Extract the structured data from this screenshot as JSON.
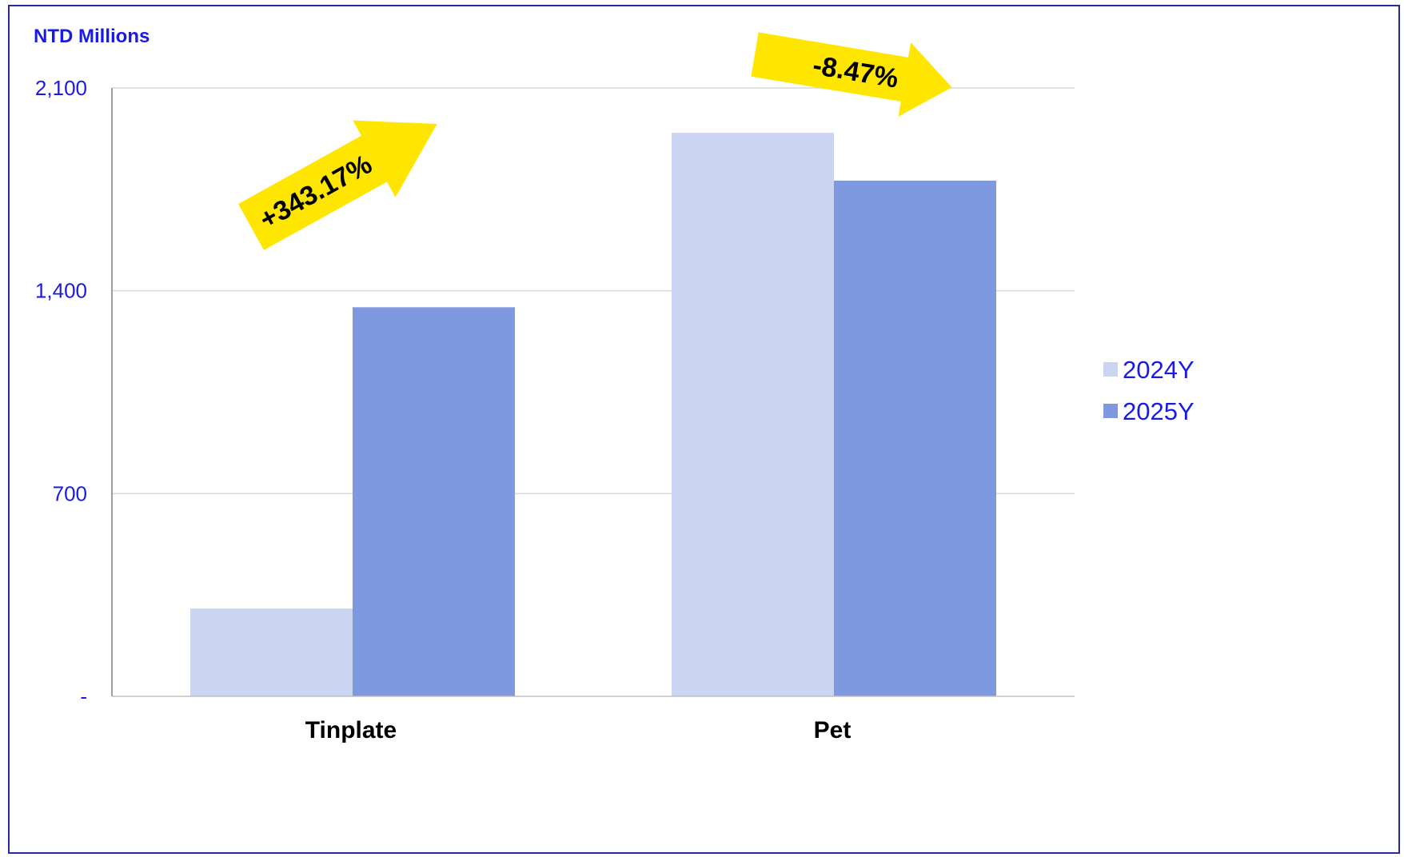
{
  "chart_data": {
    "type": "bar",
    "ylabel": "NTD Millions",
    "categories": [
      "Tinplate",
      "Pet"
    ],
    "series": [
      {
        "name": "2024Y",
        "values": [
          303,
          1945
        ],
        "color": "#cbd5f2"
      },
      {
        "name": "2025Y",
        "values": [
          1343,
          1780
        ],
        "color": "#7f99e0"
      }
    ],
    "ylim": [
      0,
      2100
    ],
    "yticks": [
      {
        "value": 0,
        "label": "-"
      },
      {
        "value": 700,
        "label": "700"
      },
      {
        "value": 1400,
        "label": "1,400"
      },
      {
        "value": 2100,
        "label": "2,100"
      }
    ],
    "grid": true,
    "legend_position": "right",
    "annotations": [
      {
        "text": "+343.17%",
        "category": "Tinplate",
        "direction": "up"
      },
      {
        "text": "-8.47%",
        "category": "Pet",
        "direction": "down"
      }
    ],
    "colors": {
      "axis_text": "#1a1ae6",
      "arrow_fill": "#ffe600",
      "gridline": "#d9d9d9",
      "frame": "#2a2a9e"
    }
  }
}
